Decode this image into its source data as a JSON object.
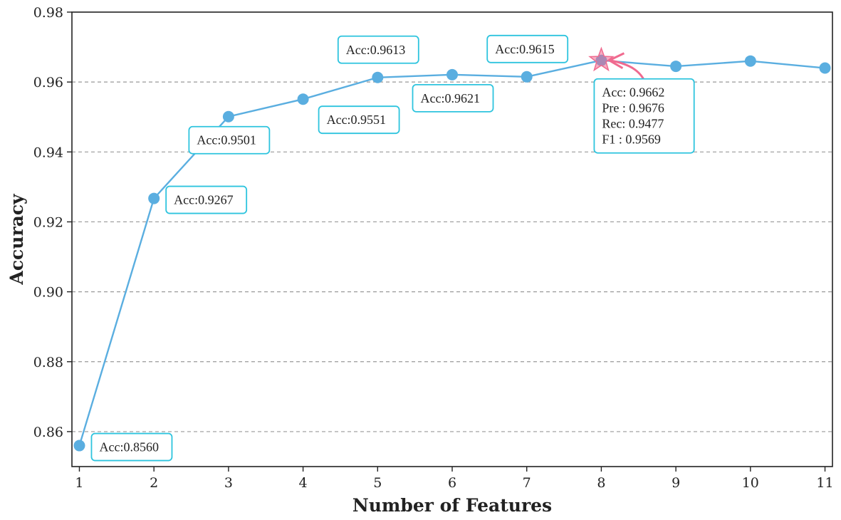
{
  "chart_data": {
    "type": "line",
    "title": "",
    "xlabel": "Number of Features",
    "ylabel": "Accuracy",
    "x": [
      1,
      2,
      3,
      4,
      5,
      6,
      7,
      8,
      9,
      10,
      11
    ],
    "x_tick_labels": [
      "1",
      "2",
      "3",
      "4",
      "5",
      "6",
      "7",
      "8",
      "9",
      "10",
      "11"
    ],
    "y_tick_labels": [
      "0.86",
      "0.88",
      "0.90",
      "0.92",
      "0.94",
      "0.96",
      "0.98"
    ],
    "y_ticks": [
      0.86,
      0.88,
      0.9,
      0.92,
      0.94,
      0.96,
      0.98
    ],
    "xlim": [
      0.9,
      11.1
    ],
    "ylim": [
      0.85,
      0.98
    ],
    "grid": "horizontal dashed",
    "legend": "none",
    "series": [
      {
        "values": [
          0.856,
          0.9267,
          0.9501,
          0.9551,
          0.9613,
          0.9621,
          0.9615,
          0.9662,
          0.9645,
          0.966,
          0.964
        ],
        "color": "#5aaee0"
      }
    ],
    "best_point": {
      "x": 8,
      "y": 0.9662,
      "marker": "star",
      "color": "#f06a8f"
    },
    "annotations": [
      {
        "point": 1,
        "lines": [
          "Acc:0.8560"
        ],
        "placement": "right"
      },
      {
        "point": 2,
        "lines": [
          "Acc:0.9267"
        ],
        "placement": "right"
      },
      {
        "point": 3,
        "lines": [
          "Acc:0.9501"
        ],
        "placement": "below"
      },
      {
        "point": 4,
        "lines": [
          "Acc:0.9551"
        ],
        "placement": "below-right"
      },
      {
        "point": 5,
        "lines": [
          "Acc:0.9613"
        ],
        "placement": "above"
      },
      {
        "point": 6,
        "lines": [
          "Acc:0.9621"
        ],
        "placement": "below"
      },
      {
        "point": 7,
        "lines": [
          "Acc:0.9615"
        ],
        "placement": "above"
      },
      {
        "point": 8,
        "lines": [
          "Acc: 0.9662",
          "Pre : 0.9676",
          "Rec: 0.9477",
          "F1   : 0.9569"
        ],
        "placement": "below-right"
      }
    ],
    "colors": {
      "line": "#5aaee0",
      "marker": "#5aaee0",
      "box_border": "#2ec4de",
      "star": "#f06a8f",
      "grid": "#999999",
      "axis": "#222222"
    }
  }
}
